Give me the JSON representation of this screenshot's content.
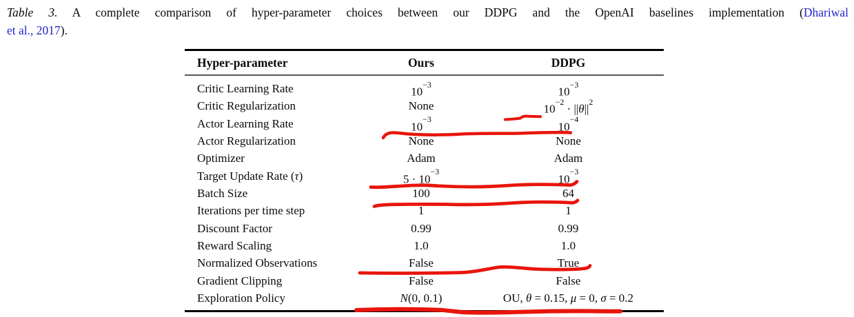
{
  "caption": {
    "line1": [
      {
        "text": "Table 3.",
        "style": "italic"
      },
      {
        "text": " A complete comparison of hyper-parameter choices between our DDPG and the OpenAI baselines implementation (",
        "style": "plain"
      },
      {
        "text": "Dhariwal",
        "style": "link"
      }
    ],
    "line2": [
      {
        "text": "et al., 2017",
        "style": "link"
      },
      {
        "text": ").",
        "style": "plain"
      }
    ]
  },
  "table": {
    "headers": {
      "param": "Hyper-parameter",
      "ours": "Ours",
      "ddpg": "DDPG"
    },
    "rows": [
      {
        "param": "Critic Learning Rate",
        "ours": "10^-3",
        "ddpg": "10^-3"
      },
      {
        "param": "Critic Regularization",
        "ours": "None",
        "ddpg": "10^-2 · ||θ||^2"
      },
      {
        "param": "Actor Learning Rate",
        "ours": "10^-3",
        "ddpg": "10^-4"
      },
      {
        "param": "Actor Regularization",
        "ours": "None",
        "ddpg": "None"
      },
      {
        "param": "Optimizer",
        "ours": "Adam",
        "ddpg": "Adam"
      },
      {
        "param": "Target Update Rate (τ)",
        "ours": "5 · 10^-3",
        "ddpg": "10^-3"
      },
      {
        "param": "Batch Size",
        "ours": "100",
        "ddpg": "64"
      },
      {
        "param": "Iterations per time step",
        "ours": "1",
        "ddpg": "1"
      },
      {
        "param": "Discount Factor",
        "ours": "0.99",
        "ddpg": "0.99"
      },
      {
        "param": "Reward Scaling",
        "ours": "1.0",
        "ddpg": "1.0"
      },
      {
        "param": "Normalized Observations",
        "ours": "False",
        "ddpg": "True"
      },
      {
        "param": "Gradient Clipping",
        "ours": "False",
        "ddpg": "False"
      },
      {
        "param": "Exploration Policy",
        "ours": "N(0, 0.1)",
        "ddpg": "OU, θ = 0.15, μ = 0, σ = 0.2"
      }
    ]
  },
  "annotations": {
    "color": "#e8150b",
    "items": [
      "red-underline-critic-reg-ddpg",
      "red-underline-actor-learning-rate-row",
      "red-underline-target-update-rate-row",
      "red-underline-batch-size-row",
      "red-underline-normalized-observations-row",
      "red-underline-exploration-policy-row"
    ]
  },
  "colors": {
    "text": "#0a0a0a",
    "link": "#2323cc",
    "rule": "#000000",
    "midrule": "#555555"
  }
}
